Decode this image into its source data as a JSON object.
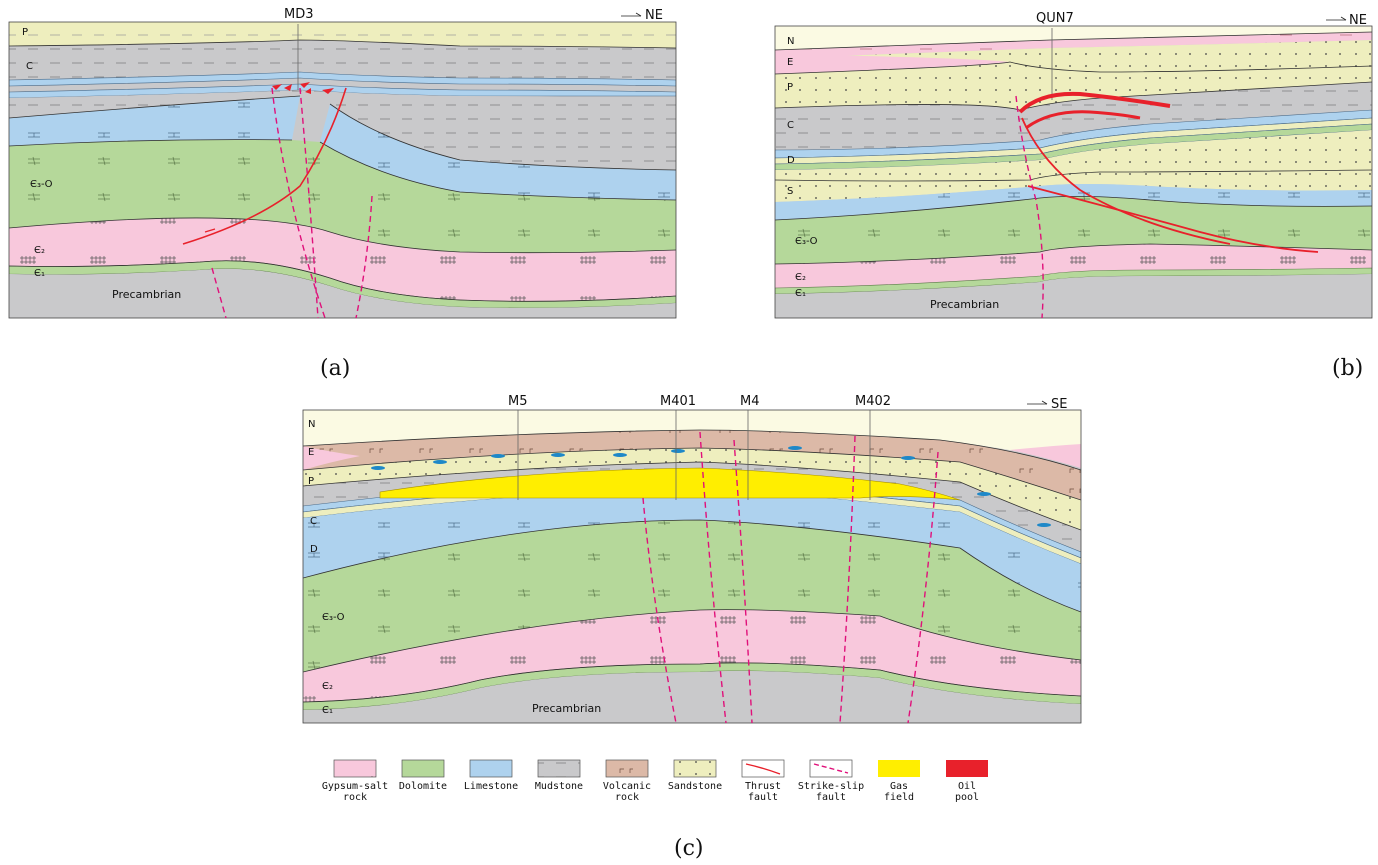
{
  "colors": {
    "gypsum": "#f8c8dc",
    "dolomite": "#b5d89a",
    "limestone": "#aed2ee",
    "mudstone": "#c9c9cb",
    "volcanic": "#dcb9a7",
    "sandstone": "#eeeebe",
    "gas": "#ffee00",
    "oil": "#e8212b",
    "strike_slip": "#e0107a",
    "sky": "#fbfae3"
  },
  "panels": {
    "a": {
      "label": "(a)",
      "direction": "NE",
      "wells": [
        "MD3"
      ],
      "strata": [
        "P",
        "C",
        "Є₃-O",
        "Є₂",
        "Є₁"
      ],
      "basement": "Precambrian"
    },
    "b": {
      "label": "(b)",
      "direction": "NE",
      "wells": [
        "QUN7"
      ],
      "strata": [
        "N",
        "E",
        "P",
        "C",
        "D",
        "S",
        "Є₃-O",
        "Є₂",
        "Є₁"
      ],
      "basement": "Precambrian"
    },
    "c": {
      "label": "(c)",
      "direction": "SE",
      "wells": [
        "M5",
        "M401",
        "M4",
        "M402"
      ],
      "strata": [
        "N",
        "E",
        "P",
        "C",
        "D",
        "Є₃-O",
        "Є₂",
        "Є₁"
      ],
      "basement": "Precambrian"
    }
  },
  "legend": [
    {
      "name": "gypsum-salt-rock",
      "lines": [
        "Gypsum-salt",
        "rock"
      ],
      "pattern": "gypsum"
    },
    {
      "name": "dolomite",
      "lines": [
        "Dolomite"
      ],
      "pattern": "dolomite"
    },
    {
      "name": "limestone",
      "lines": [
        "Limestone"
      ],
      "pattern": "limestone"
    },
    {
      "name": "mudstone",
      "lines": [
        "Mudstone"
      ],
      "pattern": "mudstone"
    },
    {
      "name": "volcanic-rock",
      "lines": [
        "Volcanic",
        "rock"
      ],
      "pattern": "volcanic"
    },
    {
      "name": "sandstone",
      "lines": [
        "Sandstone"
      ],
      "pattern": "sandstone"
    },
    {
      "name": "thrust-fault",
      "lines": [
        "Thrust",
        "fault"
      ],
      "pattern": "thrust"
    },
    {
      "name": "strike-slip-fault",
      "lines": [
        "Strike-slip",
        "fault"
      ],
      "pattern": "strikeslip"
    },
    {
      "name": "gas-field",
      "lines": [
        "Gas",
        "field"
      ],
      "pattern": "gas"
    },
    {
      "name": "oil-pool",
      "lines": [
        "Oil",
        "pool"
      ],
      "pattern": "oil"
    }
  ]
}
